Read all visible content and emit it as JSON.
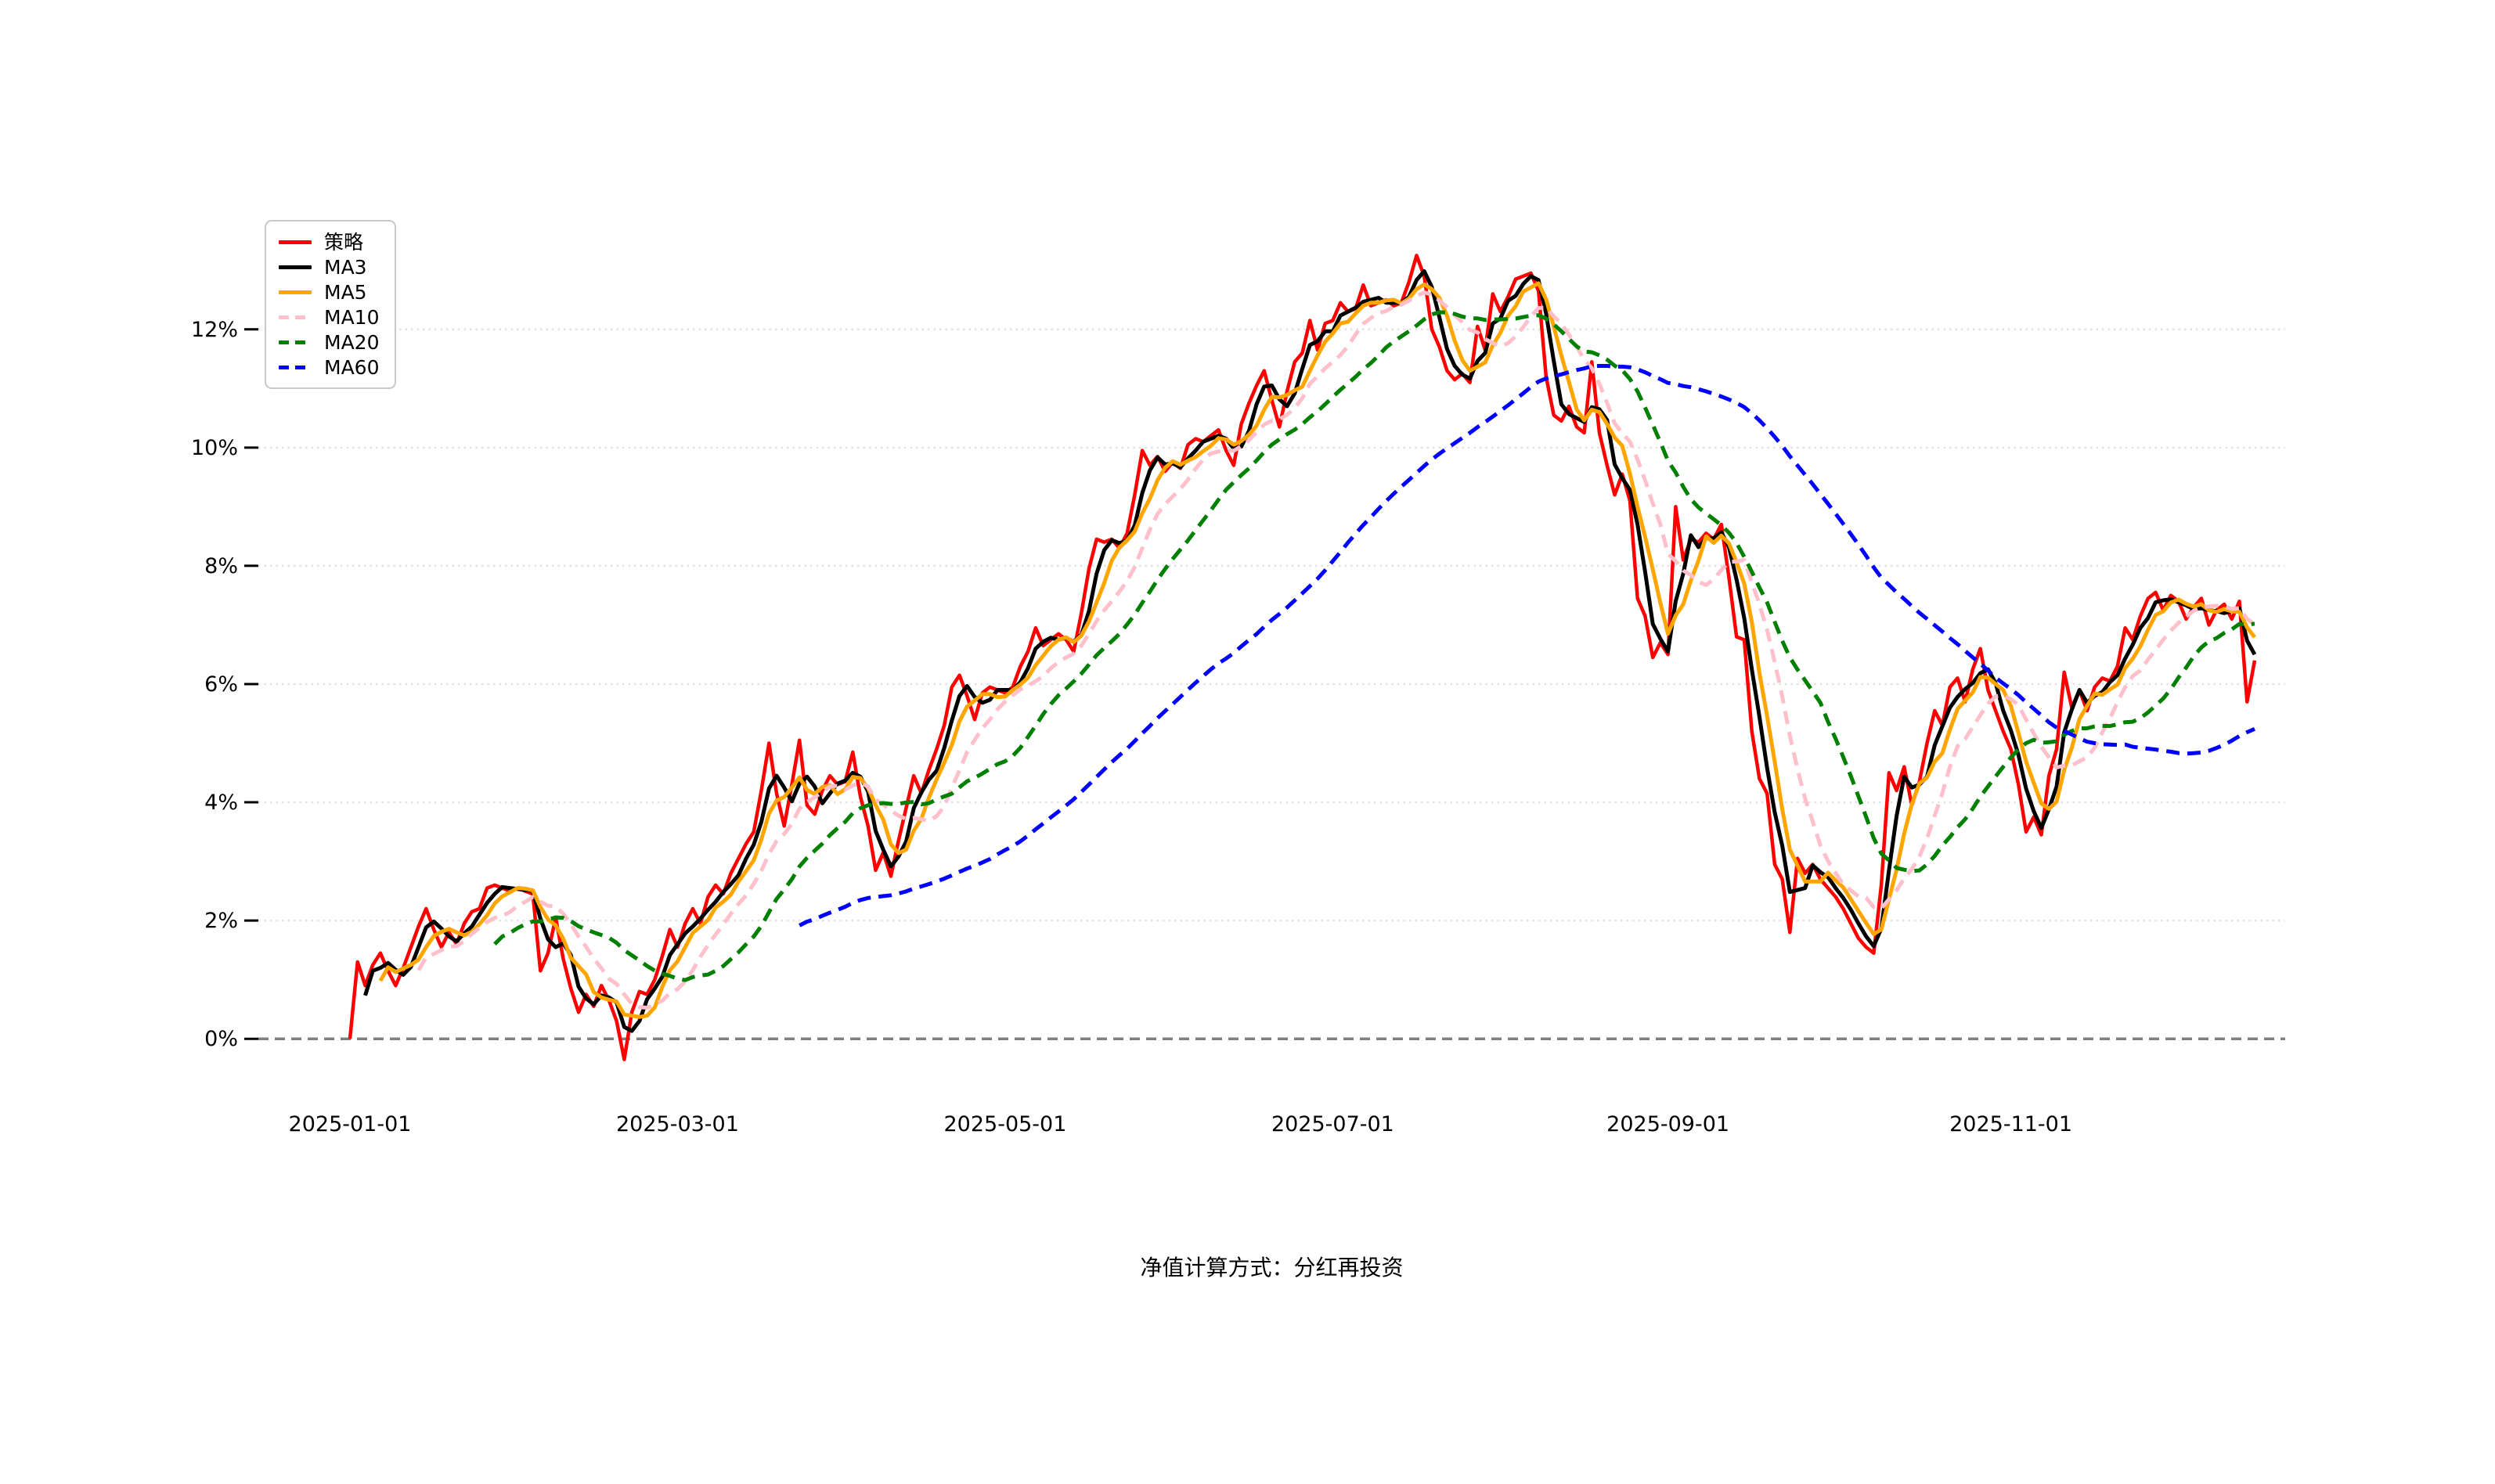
{
  "chart_data": {
    "type": "line",
    "title": "",
    "caption": "净值计算方式：分红再投资",
    "xlabel": "",
    "ylabel": "",
    "x_tick_labels": [
      "2025-01-01",
      "2025-03-01",
      "2025-05-01",
      "2025-07-01",
      "2025-09-01",
      "2025-11-01"
    ],
    "x_tick_indices": [
      0,
      43,
      86,
      129,
      173,
      218
    ],
    "y_tick_labels": [
      "0%",
      "2%",
      "4%",
      "6%",
      "8%",
      "10%",
      "12%"
    ],
    "y_tick_values": [
      0,
      2,
      4,
      6,
      8,
      10,
      12
    ],
    "ylim": [
      -1.03,
      13.93
    ],
    "n_points": 251,
    "grid": "horizontal-dotted",
    "zero_line": true,
    "legend_position": "upper-left",
    "background": "#ffffff",
    "series": [
      {
        "name": "策略",
        "kind": "raw",
        "color": "#ff0000",
        "style": "solid",
        "values": [
          0.0,
          1.3,
          0.9,
          1.25,
          1.45,
          1.15,
          0.9,
          1.2,
          1.55,
          1.9,
          2.2,
          1.85,
          1.55,
          1.8,
          1.6,
          1.95,
          2.15,
          2.2,
          2.55,
          2.6,
          2.55,
          2.5,
          2.55,
          2.5,
          2.45,
          1.15,
          1.45,
          2.05,
          1.35,
          0.85,
          0.45,
          0.75,
          0.55,
          0.9,
          0.65,
          0.3,
          -0.35,
          0.45,
          0.8,
          0.75,
          1.0,
          1.4,
          1.85,
          1.55,
          1.95,
          2.2,
          1.95,
          2.4,
          2.6,
          2.45,
          2.8,
          3.05,
          3.3,
          3.5,
          4.2,
          5.0,
          4.15,
          3.6,
          4.3,
          5.05,
          3.95,
          3.8,
          4.2,
          4.45,
          4.3,
          4.35,
          4.85,
          4.1,
          3.6,
          2.85,
          3.15,
          2.75,
          3.35,
          3.9,
          4.45,
          4.15,
          4.55,
          4.9,
          5.3,
          5.95,
          6.15,
          5.8,
          5.4,
          5.85,
          5.95,
          5.9,
          5.85,
          5.95,
          6.3,
          6.55,
          6.95,
          6.65,
          6.75,
          6.85,
          6.75,
          6.55,
          7.2,
          7.95,
          8.45,
          8.4,
          8.45,
          8.3,
          8.55,
          9.2,
          9.95,
          9.7,
          9.85,
          9.6,
          9.75,
          9.65,
          10.05,
          10.15,
          10.1,
          10.2,
          10.3,
          9.95,
          9.7,
          10.4,
          10.75,
          11.05,
          11.3,
          10.8,
          10.35,
          10.95,
          11.45,
          11.6,
          12.15,
          11.65,
          12.1,
          12.15,
          12.45,
          12.3,
          12.35,
          12.75,
          12.4,
          12.45,
          12.5,
          12.4,
          12.45,
          12.8,
          13.25,
          12.9,
          12.0,
          11.7,
          11.3,
          11.15,
          11.25,
          11.1,
          12.05,
          11.65,
          12.6,
          12.3,
          12.55,
          12.85,
          12.9,
          12.95,
          12.65,
          11.2,
          10.55,
          10.45,
          10.7,
          10.35,
          10.25,
          11.45,
          10.25,
          9.7,
          9.2,
          9.55,
          9.1,
          7.45,
          7.15,
          6.45,
          6.7,
          6.5,
          9.0,
          8.1,
          8.45,
          8.4,
          8.55,
          8.45,
          8.7,
          7.8,
          6.8,
          6.75,
          5.2,
          4.4,
          4.15,
          2.95,
          2.7,
          1.8,
          3.05,
          2.8,
          2.95,
          2.7,
          2.55,
          2.4,
          2.2,
          1.95,
          1.7,
          1.55,
          1.45,
          2.6,
          4.5,
          4.2,
          4.6,
          3.95,
          4.35,
          5.0,
          5.55,
          5.3,
          5.95,
          6.1,
          5.7,
          6.25,
          6.6,
          5.9,
          5.55,
          5.2,
          4.9,
          4.3,
          3.5,
          3.75,
          3.45,
          4.45,
          4.9,
          6.2,
          5.6,
          5.9,
          5.55,
          5.95,
          6.1,
          6.05,
          6.3,
          6.95,
          6.75,
          7.15,
          7.45,
          7.55,
          7.25,
          7.5,
          7.4,
          7.1,
          7.3,
          7.45,
          7.0,
          7.25,
          7.35,
          7.1,
          7.4,
          5.7,
          6.4
        ]
      },
      {
        "name": "MA3",
        "kind": "moving_average",
        "window": 3,
        "color": "#000000",
        "style": "solid"
      },
      {
        "name": "MA5",
        "kind": "moving_average",
        "window": 5,
        "color": "#ffa500",
        "style": "solid"
      },
      {
        "name": "MA10",
        "kind": "moving_average",
        "window": 10,
        "color": "#ffc0cb",
        "style": "dashed"
      },
      {
        "name": "MA20",
        "kind": "moving_average",
        "window": 20,
        "color": "#008000",
        "style": "dashed"
      },
      {
        "name": "MA60",
        "kind": "moving_average",
        "window": 60,
        "color": "#0000ff",
        "style": "dashed"
      }
    ],
    "style_hints": {
      "gridline_color": "#e2e2e2",
      "zero_line_color": "#7f7f7f",
      "tick_color": "#000000"
    }
  }
}
